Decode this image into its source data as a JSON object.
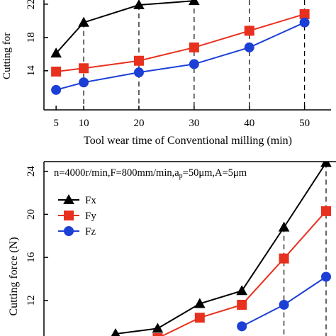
{
  "chart_data": [
    {
      "type": "line",
      "y_label": "Cutting for",
      "x_label": "Tool wear time of Conventional milling (min)",
      "x": [
        5,
        10,
        20,
        30,
        40,
        50
      ],
      "xlim": [
        2.8,
        54.8
      ],
      "xticks": [
        5,
        10,
        20,
        30,
        40,
        50
      ],
      "ylim": [
        9.3,
        22.5
      ],
      "yticks": [
        14,
        18,
        22
      ],
      "series": [
        {
          "name": "Fx",
          "color": "#000000",
          "marker": "triangle",
          "values": [
            16.1,
            19.8,
            21.9,
            22.4,
            null,
            null
          ]
        },
        {
          "name": "Fy",
          "color": "#e8301e",
          "marker": "square",
          "values": [
            13.9,
            14.3,
            15.2,
            16.8,
            18.8,
            20.8
          ]
        },
        {
          "name": "Fz",
          "color": "#1c3fd6",
          "marker": "circle",
          "values": [
            11.7,
            12.6,
            13.8,
            14.8,
            16.8,
            19.8
          ]
        }
      ]
    },
    {
      "type": "line",
      "y_label": "Cutting force (N)",
      "annotation": {
        "before": "n=4000r/min,F=800mm/min,a",
        "sub": "p",
        "after": "=50μm,A=5μm"
      },
      "categories": [
        null,
        null,
        null,
        null,
        null,
        null
      ],
      "ylim": [
        8.7,
        24.9
      ],
      "yticks": [
        12,
        16,
        20,
        24
      ],
      "legend": "upper left",
      "series": [
        {
          "name": "Fx",
          "color": "#000000",
          "marker": "triangle",
          "values": [
            8.9,
            9.4,
            11.7,
            12.9,
            18.8,
            24.8
          ]
        },
        {
          "name": "Fy",
          "color": "#e8301e",
          "marker": "square",
          "values": [
            null,
            8.5,
            10.4,
            11.6,
            15.9,
            20.3
          ]
        },
        {
          "name": "Fz",
          "color": "#1c3fd6",
          "marker": "circle",
          "values": [
            null,
            null,
            null,
            9.6,
            11.6,
            14.2
          ]
        }
      ]
    }
  ]
}
